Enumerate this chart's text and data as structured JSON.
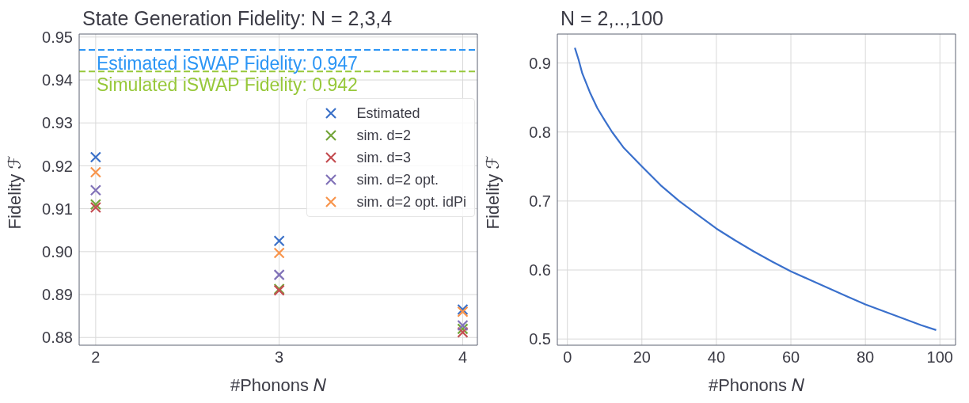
{
  "chart_data": [
    {
      "type": "scatter",
      "title": "State Generation Fidelity: N = 2,3,4",
      "xlabel": "#Phonons 𝑁",
      "ylabel": "Fidelity ℱ",
      "x": [
        2,
        3,
        4
      ],
      "xlim": [
        1.91,
        4.08
      ],
      "xticks": [
        2,
        3,
        4
      ],
      "ylim": [
        0.8782,
        0.9507
      ],
      "yticks": [
        {
          "value": 0.88,
          "label": "0.88"
        },
        {
          "value": 0.89,
          "label": "0.89"
        },
        {
          "value": 0.9,
          "label": "0.90"
        },
        {
          "value": 0.91,
          "label": "0.91"
        },
        {
          "value": 0.92,
          "label": "0.92"
        },
        {
          "value": 0.93,
          "label": "0.93"
        },
        {
          "value": 0.94,
          "label": "0.94"
        },
        {
          "value": 0.95,
          "label": "0.95"
        }
      ],
      "grid": true,
      "legend": "top right",
      "marker": "cross",
      "series": [
        {
          "name": "Estimated",
          "color": "#3a70c8",
          "values": [
            0.922,
            0.9025,
            0.8865
          ]
        },
        {
          "name": "sim. d=2",
          "color": "#74a53a",
          "values": [
            0.911,
            0.8913,
            0.882
          ]
        },
        {
          "name": "sim. d=3",
          "color": "#c44e52",
          "values": [
            0.9103,
            0.891,
            0.8812
          ]
        },
        {
          "name": "sim. d=2 opt.",
          "color": "#8172b8",
          "values": [
            0.9143,
            0.8946,
            0.8828
          ]
        },
        {
          "name": "sim. d=2 opt. idPi",
          "color": "#f8944b",
          "values": [
            0.9185,
            0.8997,
            0.886
          ]
        }
      ],
      "ref_lines": [
        {
          "axis": "y",
          "value": 0.947,
          "label": "Estimated iSWAP Fidelity: 0.947",
          "color": "#2b95f5",
          "line_style": "dashed"
        },
        {
          "axis": "y",
          "value": 0.942,
          "label": "Simulated iSWAP Fidelity: 0.942",
          "color": "#97c83a",
          "line_style": "dashed"
        }
      ]
    },
    {
      "type": "line",
      "title": "N = 2,..,100",
      "xlabel": "#Phonons 𝑁",
      "ylabel": "Fidelity ℱ",
      "xlim": [
        -2.7,
        104.2
      ],
      "xticks": [
        0,
        20,
        40,
        60,
        80,
        100
      ],
      "ylim": [
        0.491,
        0.942
      ],
      "yticks": [
        0.5,
        0.6,
        0.7,
        0.8,
        0.9
      ],
      "grid": true,
      "marker": "none",
      "line_style": "solid",
      "series": [
        {
          "color": "#3a70cc",
          "x": [
            2,
            3,
            4,
            6,
            8,
            10,
            12,
            15,
            20,
            25,
            30,
            35,
            40,
            45,
            50,
            55,
            60,
            65,
            70,
            75,
            80,
            85,
            90,
            95,
            99
          ],
          "values": [
            0.922,
            0.905,
            0.885,
            0.858,
            0.835,
            0.817,
            0.8,
            0.778,
            0.75,
            0.723,
            0.7,
            0.68,
            0.66,
            0.643,
            0.627,
            0.612,
            0.598,
            0.586,
            0.574,
            0.562,
            0.55,
            0.54,
            0.53,
            0.52,
            0.513
          ]
        }
      ]
    }
  ]
}
